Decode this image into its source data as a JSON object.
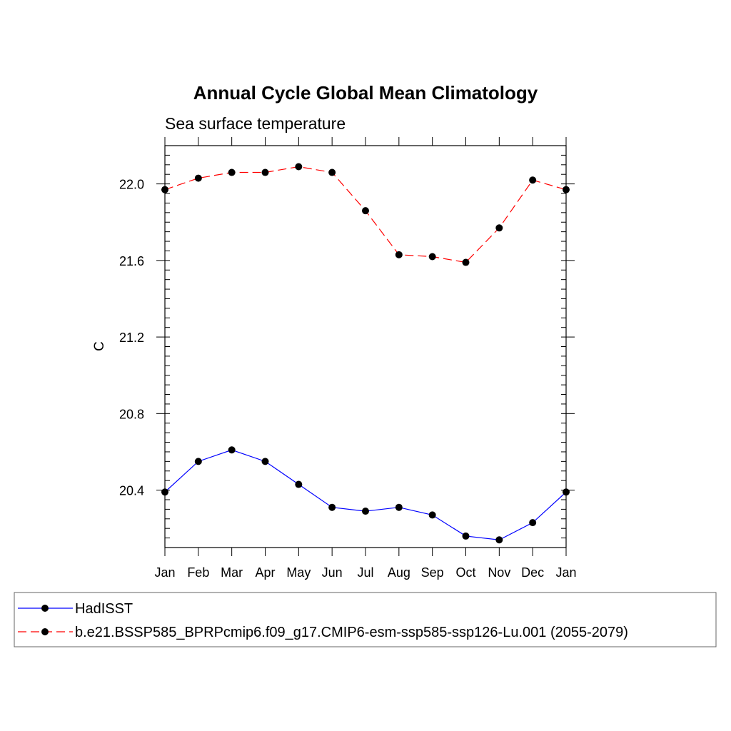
{
  "chart_data": {
    "type": "line",
    "title": "Annual Cycle Global Mean Climatology",
    "subtitle": "Sea surface temperature",
    "xlabel": "",
    "ylabel": "C",
    "categories": [
      "Jan",
      "Feb",
      "Mar",
      "Apr",
      "May",
      "Jun",
      "Jul",
      "Aug",
      "Sep",
      "Oct",
      "Nov",
      "Dec",
      "Jan"
    ],
    "ylim": [
      20.1,
      22.2
    ],
    "yticks": [
      20.4,
      20.8,
      21.2,
      21.6,
      22.0
    ],
    "ytick_labels": [
      "20.4",
      "20.8",
      "21.2",
      "21.6",
      "22.0"
    ],
    "series": [
      {
        "name": "HadISST",
        "color": "#0000ff",
        "line_style": "solid",
        "values": [
          20.39,
          20.55,
          20.61,
          20.55,
          20.43,
          20.31,
          20.29,
          20.31,
          20.27,
          20.16,
          20.14,
          20.23,
          20.39
        ]
      },
      {
        "name": "b.e21.BSSP585_BPRPcmip6.f09_g17.CMIP6-esm-ssp585-ssp126-Lu.001 (2055-2079)",
        "color": "#ff0000",
        "line_style": "dashed",
        "values": [
          21.97,
          22.03,
          22.06,
          22.06,
          22.09,
          22.06,
          21.86,
          21.63,
          21.62,
          21.59,
          21.77,
          22.02,
          21.97
        ]
      }
    ],
    "legend_position": "bottom"
  }
}
